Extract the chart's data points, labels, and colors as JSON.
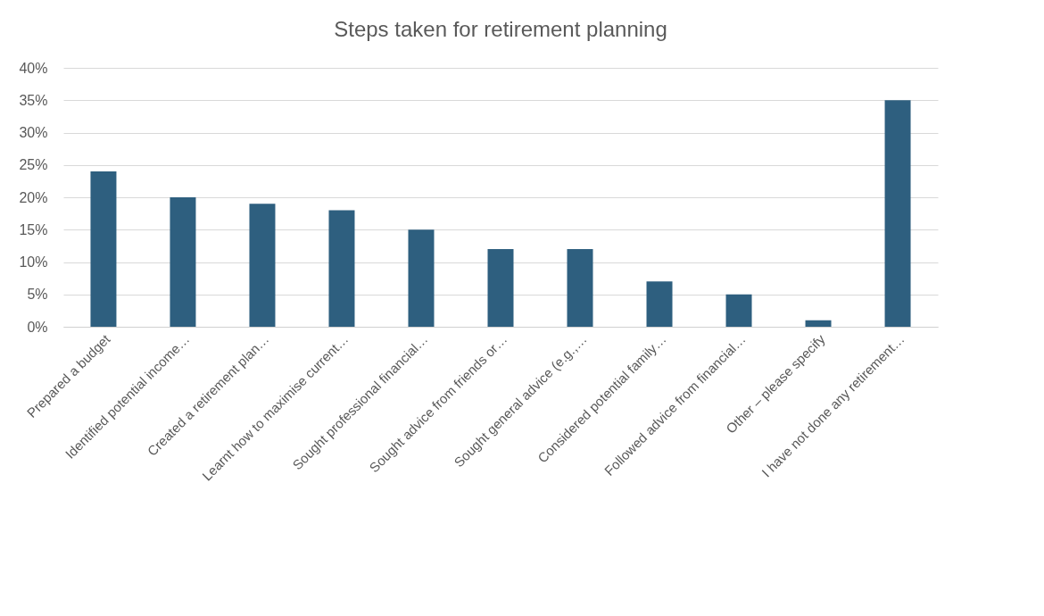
{
  "chart_data": {
    "type": "bar",
    "title": "Steps taken for retirement planning",
    "categories": [
      "Prepared a budget",
      "Identified potential income…",
      "Created a retirement plan…",
      "Learnt how to maximise current…",
      "Sought professional financial…",
      "Sought advice from friends or…",
      "Sought general advice (e.g.,…",
      "Considered potential family…",
      "Followed advice from financial…",
      "Other – please specify",
      "I have not done any retirement…"
    ],
    "values": [
      24,
      20,
      19,
      18,
      15,
      12,
      12,
      7,
      5,
      1,
      35
    ],
    "color": "#2e5f7f",
    "ylim": [
      0,
      40
    ],
    "yticks": [
      {
        "value": 0,
        "label": "0%"
      },
      {
        "value": 5,
        "label": "5%"
      },
      {
        "value": 10,
        "label": "10%"
      },
      {
        "value": 15,
        "label": "15%"
      },
      {
        "value": 20,
        "label": "20%"
      },
      {
        "value": 25,
        "label": "25%"
      },
      {
        "value": 30,
        "label": "30%"
      },
      {
        "value": 35,
        "label": "35%"
      },
      {
        "value": 40,
        "label": "40%"
      }
    ],
    "grid": "y"
  }
}
